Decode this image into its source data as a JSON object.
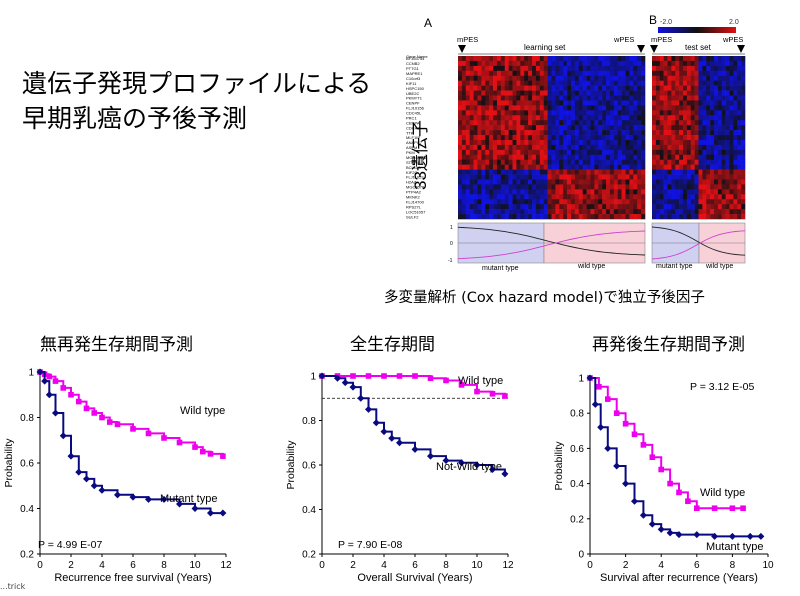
{
  "title": "遺伝子発現プロファイルによる\n早期乳癌の予後予測",
  "heatmap": {
    "panel_a_label": "A",
    "panel_b_label": "B",
    "learning_set_label": "learning set",
    "test_set_label": "test set",
    "mpes_label": "mPES",
    "wpes_label": "wPES",
    "gene_count_label": "33遺伝子",
    "gene_name_header": "Gene Name",
    "scale_min": "-2.0",
    "scale_max": "2.0",
    "colors": {
      "low": "#1010e0",
      "mid": "#101010",
      "high": "#e01010"
    },
    "genes": [
      "BF353754",
      "CCNB2",
      "PTTG1",
      "MAPRE1",
      "C10orf3",
      "KIF11",
      "HSPC150",
      "UBE2C",
      "PKMYT1",
      "CENPF",
      "FLJ10156",
      "CDC45L",
      "PRC1",
      "CENPA",
      "CDCA8",
      "TTK",
      "MLF1IP",
      "ANAPC7",
      "ASPM",
      "PKM",
      "MGC45866",
      "STMN1",
      "BCL11A",
      "KIF2C",
      "FLJ11029",
      "H2AZ",
      "MGC5576",
      "PTP4A2",
      "MKNK2",
      "FLJ14700",
      "RPS27L",
      "LOC51057",
      "SULF2"
    ],
    "mutant_type_label": "mutant type",
    "wild_type_label": "wild type"
  },
  "multivariate_note": "多変量解析 (Cox hazard model)で独立予後因子",
  "clipped_text": "...trick",
  "chart_data": [
    {
      "type": "line",
      "heading": "無再発生存期間予測",
      "xlabel": "Recurrence free survival (Years)",
      "ylabel": "Probability",
      "xlim": [
        0,
        12
      ],
      "ylim": [
        0.2,
        1.0
      ],
      "xticks": [
        "0",
        "2",
        "4",
        "6",
        "8",
        "10",
        "12"
      ],
      "yticks": [
        "0.2",
        "0.4",
        "0.6",
        "0.8",
        "1"
      ],
      "p_value": "P = 4.99 E-07",
      "series": [
        {
          "name": "Wild type",
          "color": "#ee00ee",
          "marker": "square",
          "points": [
            [
              0,
              1.0
            ],
            [
              0.3,
              0.99
            ],
            [
              0.6,
              0.98
            ],
            [
              1.0,
              0.96
            ],
            [
              1.5,
              0.93
            ],
            [
              2.0,
              0.9
            ],
            [
              2.5,
              0.87
            ],
            [
              3.0,
              0.84
            ],
            [
              3.5,
              0.82
            ],
            [
              4.0,
              0.8
            ],
            [
              4.5,
              0.78
            ],
            [
              5.0,
              0.77
            ],
            [
              6.0,
              0.75
            ],
            [
              7.0,
              0.73
            ],
            [
              8.0,
              0.71
            ],
            [
              9.0,
              0.69
            ],
            [
              10.0,
              0.67
            ],
            [
              10.5,
              0.65
            ],
            [
              11.0,
              0.64
            ],
            [
              11.8,
              0.63
            ]
          ]
        },
        {
          "name": "Mutant type",
          "color": "#0a0a80",
          "marker": "diamond",
          "points": [
            [
              0,
              1.0
            ],
            [
              0.3,
              0.96
            ],
            [
              0.6,
              0.9
            ],
            [
              1.0,
              0.82
            ],
            [
              1.5,
              0.72
            ],
            [
              2.0,
              0.63
            ],
            [
              2.5,
              0.56
            ],
            [
              3.0,
              0.53
            ],
            [
              3.5,
              0.5
            ],
            [
              4.0,
              0.48
            ],
            [
              5.0,
              0.46
            ],
            [
              6.0,
              0.45
            ],
            [
              7.0,
              0.44
            ],
            [
              8.0,
              0.44
            ],
            [
              9.0,
              0.42
            ],
            [
              10.0,
              0.4
            ],
            [
              11.0,
              0.38
            ],
            [
              11.8,
              0.38
            ]
          ]
        }
      ]
    },
    {
      "type": "line",
      "heading": "全生存期間",
      "xlabel": "Overall Survival (Years)",
      "ylabel": "Probability",
      "xlim": [
        0,
        12
      ],
      "ylim": [
        0.2,
        1.0
      ],
      "xticks": [
        "0",
        "2",
        "4",
        "6",
        "8",
        "10",
        "12"
      ],
      "yticks": [
        "0.2",
        "0.4",
        "0.6",
        "0.8",
        "1"
      ],
      "p_value": "P = 7.90 E-08",
      "reference_line_y": 0.9,
      "series": [
        {
          "name": "Wild type",
          "color": "#ee00ee",
          "marker": "square",
          "points": [
            [
              0,
              1.0
            ],
            [
              1.0,
              1.0
            ],
            [
              2.0,
              1.0
            ],
            [
              3.0,
              1.0
            ],
            [
              4.0,
              1.0
            ],
            [
              5.0,
              1.0
            ],
            [
              6.0,
              1.0
            ],
            [
              7.0,
              0.99
            ],
            [
              8.0,
              0.98
            ],
            [
              9.0,
              0.96
            ],
            [
              10.0,
              0.93
            ],
            [
              11.0,
              0.92
            ],
            [
              11.8,
              0.91
            ]
          ]
        },
        {
          "name": "Not-Wild type",
          "color": "#0a0a80",
          "marker": "diamond",
          "points": [
            [
              0,
              1.0
            ],
            [
              1.0,
              0.99
            ],
            [
              1.5,
              0.97
            ],
            [
              2.0,
              0.95
            ],
            [
              2.5,
              0.9
            ],
            [
              3.0,
              0.85
            ],
            [
              3.5,
              0.79
            ],
            [
              4.0,
              0.75
            ],
            [
              4.5,
              0.72
            ],
            [
              5.0,
              0.7
            ],
            [
              6.0,
              0.67
            ],
            [
              7.0,
              0.64
            ],
            [
              8.0,
              0.62
            ],
            [
              9.0,
              0.61
            ],
            [
              10.0,
              0.6
            ],
            [
              11.0,
              0.58
            ],
            [
              11.8,
              0.56
            ]
          ]
        }
      ]
    },
    {
      "type": "line",
      "heading": "再発後生存期間予測",
      "xlabel": "Survival after recurrence (Years)",
      "ylabel": "Probability",
      "xlim": [
        0,
        10
      ],
      "ylim": [
        0,
        1.0
      ],
      "xticks": [
        "0",
        "2",
        "4",
        "6",
        "8",
        "10"
      ],
      "yticks": [
        "0",
        "0.2",
        "0.4",
        "0.6",
        "0.8",
        "1"
      ],
      "p_value": "P = 3.12 E-05",
      "series": [
        {
          "name": "Wild type",
          "color": "#ee00ee",
          "marker": "square",
          "points": [
            [
              0,
              1.0
            ],
            [
              0.5,
              0.95
            ],
            [
              1.0,
              0.88
            ],
            [
              1.5,
              0.8
            ],
            [
              2.0,
              0.74
            ],
            [
              2.5,
              0.68
            ],
            [
              3.0,
              0.62
            ],
            [
              3.5,
              0.55
            ],
            [
              4.0,
              0.48
            ],
            [
              4.5,
              0.4
            ],
            [
              5.0,
              0.35
            ],
            [
              5.5,
              0.3
            ],
            [
              6.0,
              0.26
            ],
            [
              7.0,
              0.26
            ],
            [
              8.0,
              0.26
            ],
            [
              8.6,
              0.26
            ]
          ]
        },
        {
          "name": "Mutant type",
          "color": "#0a0a80",
          "marker": "diamond",
          "points": [
            [
              0,
              1.0
            ],
            [
              0.3,
              0.85
            ],
            [
              0.6,
              0.72
            ],
            [
              1.0,
              0.6
            ],
            [
              1.5,
              0.5
            ],
            [
              2.0,
              0.4
            ],
            [
              2.5,
              0.3
            ],
            [
              3.0,
              0.22
            ],
            [
              3.5,
              0.17
            ],
            [
              4.0,
              0.14
            ],
            [
              4.5,
              0.12
            ],
            [
              5.0,
              0.11
            ],
            [
              6.0,
              0.11
            ],
            [
              7.0,
              0.1
            ],
            [
              8.0,
              0.1
            ],
            [
              9.0,
              0.1
            ],
            [
              9.6,
              0.1
            ]
          ]
        }
      ]
    }
  ]
}
